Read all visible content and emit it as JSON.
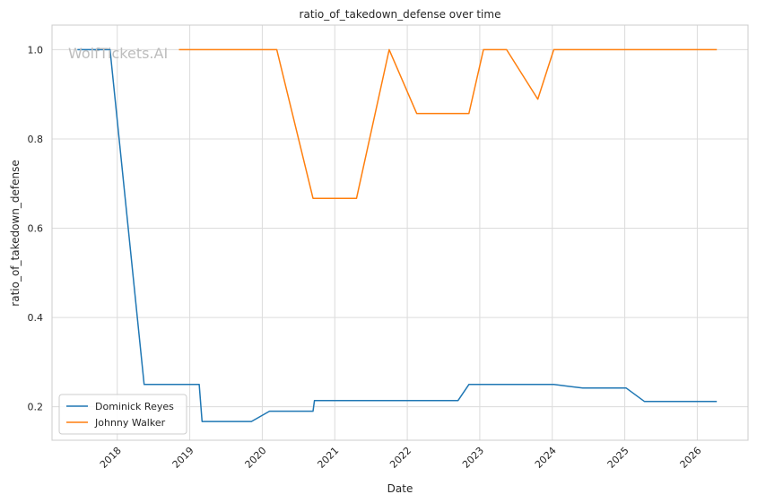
{
  "chart_data": {
    "type": "line",
    "title": "ratio_of_takedown_defense over time",
    "xlabel": "Date",
    "ylabel": "ratio_of_takedown_defense",
    "watermark": "WolfTickets.AI",
    "xlim": [
      2017.1,
      2026.7
    ],
    "ylim": [
      0.125,
      1.055
    ],
    "x_ticks": [
      2018,
      2019,
      2020,
      2021,
      2022,
      2023,
      2024,
      2025,
      2026
    ],
    "x_tick_labels": [
      "2018",
      "2019",
      "2020",
      "2021",
      "2022",
      "2023",
      "2024",
      "2025",
      "2026"
    ],
    "y_ticks": [
      0.2,
      0.4,
      0.6,
      0.8,
      1.0
    ],
    "y_tick_labels": [
      "0.2",
      "0.4",
      "0.6",
      "0.8",
      "1.0"
    ],
    "grid": true,
    "legend_position": "lower-left",
    "series": [
      {
        "name": "Dominick Reyes",
        "color": "#1f77b4",
        "points": [
          [
            2017.45,
            1.0
          ],
          [
            2017.9,
            1.0
          ],
          [
            2018.37,
            0.25
          ],
          [
            2019.13,
            0.25
          ],
          [
            2019.17,
            0.167
          ],
          [
            2019.85,
            0.167
          ],
          [
            2020.1,
            0.19
          ],
          [
            2020.7,
            0.19
          ],
          [
            2020.72,
            0.214
          ],
          [
            2022.7,
            0.214
          ],
          [
            2022.85,
            0.25
          ],
          [
            2024.02,
            0.25
          ],
          [
            2024.42,
            0.242
          ],
          [
            2025.02,
            0.242
          ],
          [
            2025.27,
            0.212
          ],
          [
            2026.27,
            0.212
          ]
        ]
      },
      {
        "name": "Johnny Walker",
        "color": "#ff7f0e",
        "points": [
          [
            2018.85,
            1.0
          ],
          [
            2020.2,
            1.0
          ],
          [
            2020.7,
            0.667
          ],
          [
            2021.3,
            0.667
          ],
          [
            2021.75,
            1.0
          ],
          [
            2022.13,
            0.857
          ],
          [
            2022.85,
            0.857
          ],
          [
            2023.05,
            1.0
          ],
          [
            2023.37,
            1.0
          ],
          [
            2023.8,
            0.889
          ],
          [
            2024.02,
            1.0
          ],
          [
            2026.27,
            1.0
          ]
        ]
      }
    ]
  }
}
